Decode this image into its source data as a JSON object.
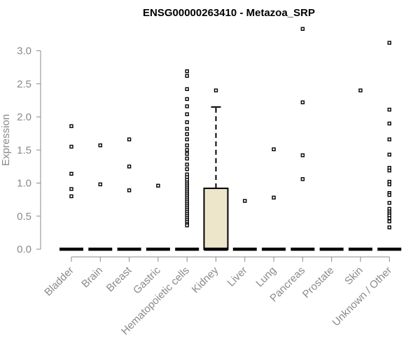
{
  "chart_data": {
    "type": "boxplot",
    "title": "ENSG00000263410 - Metazoa_SRP",
    "xlabel": "",
    "ylabel": "Expression",
    "ylim": [
      0,
      3.2
    ],
    "yticks": [
      "0.0",
      "0.5",
      "1.0",
      "1.5",
      "2.0",
      "2.5",
      "3.0"
    ],
    "categories": [
      "Bladder",
      "Brain",
      "Breast",
      "Gastric",
      "Hematopoietic cells",
      "Kidney",
      "Liver",
      "Lung",
      "Pancreas",
      "Prostate",
      "Skin",
      "Unknown / Other"
    ],
    "colors": {
      "box_fill": "#ede6cb",
      "box_stroke": "#000000",
      "point": "#000000",
      "axis": "#8a8a8a"
    },
    "boxes": [
      {
        "category": "Bladder",
        "q1": 0,
        "median": 0,
        "q3": 0,
        "whisker_low": 0,
        "whisker_high": 0,
        "outliers": [
          1.86,
          1.55,
          1.14,
          0.91,
          0.8
        ]
      },
      {
        "category": "Brain",
        "q1": 0,
        "median": 0,
        "q3": 0,
        "whisker_low": 0,
        "whisker_high": 0,
        "outliers": [
          1.57,
          0.98
        ]
      },
      {
        "category": "Breast",
        "q1": 0,
        "median": 0,
        "q3": 0,
        "whisker_low": 0,
        "whisker_high": 0,
        "outliers": [
          1.66,
          1.25,
          0.89
        ]
      },
      {
        "category": "Gastric",
        "q1": 0,
        "median": 0,
        "q3": 0,
        "whisker_low": 0,
        "whisker_high": 0,
        "outliers": [
          0.96
        ]
      },
      {
        "category": "Hematopoietic cells",
        "q1": 0,
        "median": 0,
        "q3": 0,
        "whisker_low": 0,
        "whisker_high": 0,
        "outliers": [
          2.69,
          2.62,
          2.42,
          2.27,
          2.16,
          2.04,
          1.92,
          1.82,
          1.74,
          1.66,
          1.57,
          1.5,
          1.44,
          1.37,
          1.28,
          1.21,
          1.13,
          1.09,
          1.05,
          1.01,
          0.98,
          0.95,
          0.92,
          0.89,
          0.86,
          0.83,
          0.8,
          0.77,
          0.74,
          0.71,
          0.68,
          0.65,
          0.62,
          0.59,
          0.56,
          0.53,
          0.5,
          0.47,
          0.44,
          0.41,
          0.38,
          0.36
        ]
      },
      {
        "category": "Kidney",
        "q1": 0,
        "median": 0,
        "q3": 0.92,
        "whisker_low": 0,
        "whisker_high": 2.15,
        "outliers": [
          2.4
        ]
      },
      {
        "category": "Liver",
        "q1": 0,
        "median": 0,
        "q3": 0,
        "whisker_low": 0,
        "whisker_high": 0,
        "outliers": [
          0.73
        ]
      },
      {
        "category": "Lung",
        "q1": 0,
        "median": 0,
        "q3": 0,
        "whisker_low": 0,
        "whisker_high": 0,
        "outliers": [
          1.51,
          0.78
        ]
      },
      {
        "category": "Pancreas",
        "q1": 0,
        "median": 0,
        "q3": 0,
        "whisker_low": 0,
        "whisker_high": 0,
        "outliers": [
          3.33,
          2.22,
          1.42,
          1.06
        ]
      },
      {
        "category": "Prostate",
        "q1": 0,
        "median": 0,
        "q3": 0,
        "whisker_low": 0,
        "whisker_high": 0,
        "outliers": []
      },
      {
        "category": "Skin",
        "q1": 0,
        "median": 0,
        "q3": 0,
        "whisker_low": 0,
        "whisker_high": 0,
        "outliers": [
          2.4
        ]
      },
      {
        "category": "Unknown / Other",
        "q1": 0,
        "median": 0,
        "q3": 0,
        "whisker_low": 0,
        "whisker_high": 0,
        "outliers": [
          3.12,
          2.11,
          1.9,
          1.66,
          1.43,
          1.23,
          1.19,
          1.02,
          0.98,
          0.85,
          0.82,
          0.7,
          0.61,
          0.57,
          0.54,
          0.51,
          0.47,
          0.42,
          0.33
        ]
      }
    ]
  }
}
